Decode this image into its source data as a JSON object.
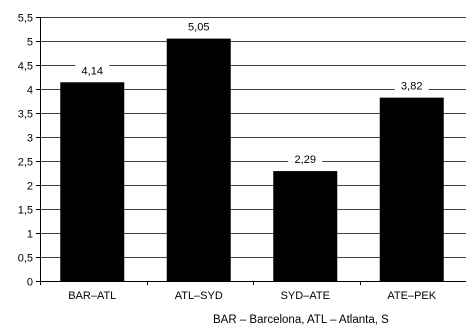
{
  "chart_data": {
    "type": "bar",
    "categories": [
      "BAR–ATL",
      "ATL–SYD",
      "SYD–ATE",
      "ATE–PEK"
    ],
    "values": [
      4.14,
      5.05,
      2.29,
      3.82
    ],
    "value_labels": [
      "4,14",
      "5,05",
      "2,29",
      "3,82"
    ],
    "yticks": [
      0,
      0.5,
      1,
      1.5,
      2,
      2.5,
      3,
      3.5,
      4,
      4.5,
      5,
      5.5
    ],
    "ytick_labels": [
      "0",
      "0,5",
      "1",
      "1,5",
      "2",
      "2,5",
      "3",
      "3,5",
      "4",
      "4,5",
      "5",
      "5,5"
    ],
    "ylim": [
      0,
      5.5
    ],
    "grid": true,
    "bar_color": "#000000",
    "title": "",
    "xlabel": "",
    "ylabel": ""
  },
  "footnote": "BAR – Barcelona, ATL – Atlanta, S"
}
